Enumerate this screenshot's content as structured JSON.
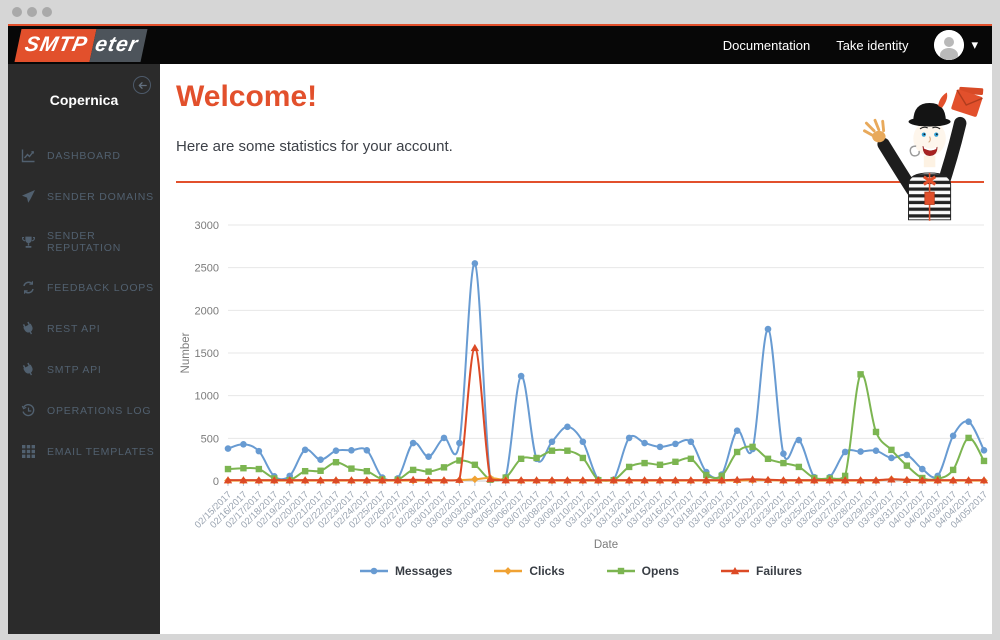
{
  "header": {
    "logo": {
      "primary": "SMTP",
      "secondary": "eter"
    },
    "links": [
      {
        "label": "Documentation"
      },
      {
        "label": "Take identity"
      }
    ]
  },
  "sidebar": {
    "organization": "Copernica",
    "items": [
      {
        "label": "DASHBOARD",
        "icon": "line-chart-icon"
      },
      {
        "label": "SENDER DOMAINS",
        "icon": "paper-plane-icon"
      },
      {
        "label": "SENDER REPUTATION",
        "icon": "trophy-icon"
      },
      {
        "label": "FEEDBACK LOOPS",
        "icon": "sync-icon"
      },
      {
        "label": "REST API",
        "icon": "plug-icon"
      },
      {
        "label": "SMTP API",
        "icon": "plug-icon"
      },
      {
        "label": "OPERATIONS LOG",
        "icon": "history-icon"
      },
      {
        "label": "EMAIL TEMPLATES",
        "icon": "grid-icon"
      }
    ]
  },
  "main": {
    "title": "Welcome!",
    "subtitle": "Here are some statistics for your account."
  },
  "chart_data": {
    "type": "line",
    "xlabel": "Date",
    "ylabel": "Number",
    "ylim": [
      0,
      3000
    ],
    "yticks": [
      0,
      500,
      1000,
      1500,
      2000,
      2500,
      3000
    ],
    "grid": true,
    "legend_position": "bottom",
    "x": [
      "02/15/2017",
      "02/16/2017",
      "02/17/2017",
      "02/18/2017",
      "02/19/2017",
      "02/20/2017",
      "02/21/2017",
      "02/22/2017",
      "02/23/2017",
      "02/24/2017",
      "02/25/2017",
      "02/26/2017",
      "02/27/2017",
      "02/28/2017",
      "03/01/2017",
      "03/02/2017",
      "03/03/2017",
      "03/04/2017",
      "03/05/2017",
      "03/06/2017",
      "03/07/2017",
      "03/08/2017",
      "03/09/2017",
      "03/10/2017",
      "03/11/2017",
      "03/12/2017",
      "03/13/2017",
      "03/14/2017",
      "03/15/2017",
      "03/16/2017",
      "03/17/2017",
      "03/18/2017",
      "03/19/2017",
      "03/20/2017",
      "03/21/2017",
      "03/22/2017",
      "03/23/2017",
      "03/24/2017",
      "03/25/2017",
      "03/26/2017",
      "03/27/2017",
      "03/28/2017",
      "03/29/2017",
      "03/30/2017",
      "03/31/2017",
      "04/01/2017",
      "04/02/2017",
      "04/03/2017",
      "04/04/2017",
      "04/05/2017"
    ],
    "series": [
      {
        "name": "Messages",
        "color": "#689bd2",
        "marker": "circle",
        "values": [
          380,
          430,
          350,
          55,
          60,
          365,
          250,
          355,
          360,
          360,
          40,
          30,
          445,
          285,
          505,
          445,
          2550,
          25,
          45,
          1230,
          260,
          460,
          635,
          460,
          15,
          15,
          505,
          445,
          400,
          435,
          460,
          105,
          75,
          590,
          375,
          1780,
          320,
          480,
          45,
          45,
          340,
          345,
          355,
          270,
          305,
          140,
          60,
          530,
          695,
          360
        ]
      },
      {
        "name": "Clicks",
        "color": "#f0a233",
        "marker": "diamond",
        "values": [
          5,
          5,
          5,
          5,
          5,
          5,
          5,
          5,
          5,
          5,
          5,
          5,
          5,
          5,
          5,
          10,
          20,
          35,
          10,
          5,
          5,
          5,
          5,
          5,
          5,
          5,
          5,
          5,
          5,
          5,
          5,
          5,
          5,
          5,
          10,
          10,
          5,
          5,
          5,
          5,
          5,
          5,
          5,
          20,
          10,
          5,
          5,
          5,
          5,
          5
        ]
      },
      {
        "name": "Opens",
        "color": "#7cb551",
        "marker": "square",
        "values": [
          140,
          150,
          140,
          30,
          10,
          115,
          120,
          220,
          145,
          115,
          20,
          15,
          130,
          110,
          160,
          240,
          190,
          15,
          40,
          260,
          270,
          355,
          355,
          270,
          10,
          10,
          165,
          210,
          190,
          225,
          260,
          70,
          60,
          340,
          400,
          260,
          210,
          165,
          35,
          30,
          60,
          1250,
          575,
          365,
          180,
          35,
          25,
          130,
          505,
          235
        ]
      },
      {
        "name": "Failures",
        "color": "#dc4a26",
        "marker": "triangle",
        "values": [
          10,
          10,
          10,
          10,
          10,
          10,
          10,
          10,
          10,
          10,
          10,
          10,
          15,
          10,
          10,
          15,
          1560,
          25,
          10,
          10,
          10,
          10,
          10,
          10,
          10,
          10,
          10,
          10,
          10,
          10,
          10,
          10,
          10,
          15,
          20,
          15,
          10,
          10,
          10,
          10,
          10,
          10,
          10,
          20,
          15,
          10,
          10,
          10,
          10,
          10
        ]
      }
    ]
  },
  "colors": {
    "accent": "#e2502c",
    "header_bg": "#070707",
    "sidebar_bg": "#2b2b2b",
    "sidebar_text": "#51606f"
  }
}
